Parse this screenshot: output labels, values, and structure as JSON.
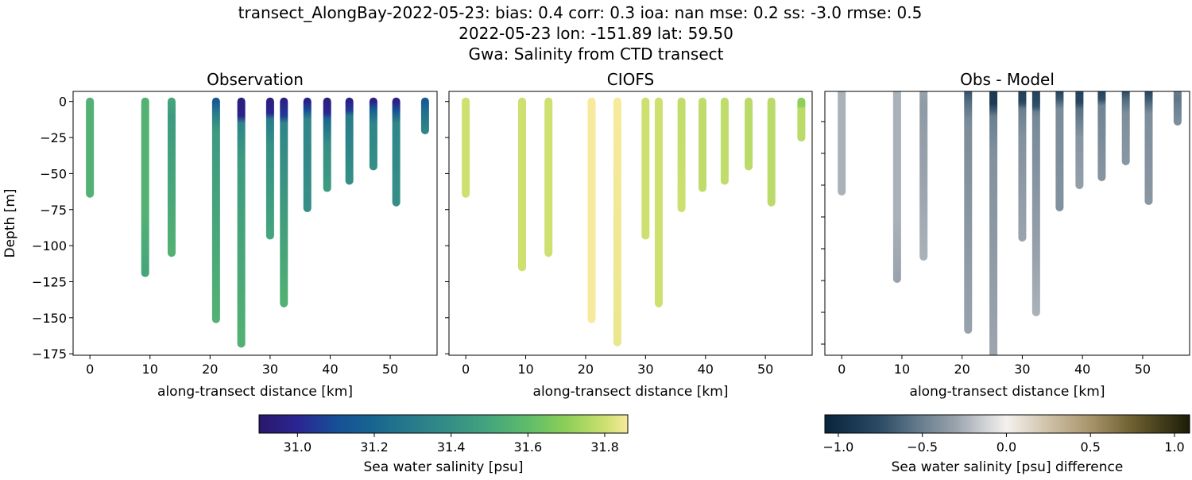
{
  "title_lines": [
    "transect_AlongBay-2022-05-23: bias: 0.4  corr: 0.3  ioa: nan  mse: 0.2  ss: -3.0  rmse: 0.5",
    "2022-05-23 lon: -151.89 lat: 59.50",
    "Gwa: Salinity from CTD transect"
  ],
  "chart_data": [
    {
      "type": "scatter",
      "title": "Observation",
      "xlabel": "along-transect distance [km]",
      "ylabel": "Depth [m]",
      "xlim": [
        -2.8,
        57.8
      ],
      "ylim": [
        -176,
        7
      ],
      "xticks": [
        0,
        10,
        20,
        30,
        40,
        50
      ],
      "yticks": [
        0,
        -25,
        -50,
        -75,
        -100,
        -125,
        -150,
        -175
      ],
      "colormap": "haline",
      "casts": [
        {
          "x": 0,
          "profile": [
            [
              0,
              31.55
            ],
            [
              64,
              31.55
            ]
          ]
        },
        {
          "x": 9.2,
          "profile": [
            [
              0,
              31.55
            ],
            [
              80,
              31.55
            ],
            [
              119,
              31.5
            ]
          ]
        },
        {
          "x": 13.6,
          "profile": [
            [
              0,
              31.5
            ],
            [
              10,
              31.45
            ],
            [
              105,
              31.55
            ]
          ]
        },
        {
          "x": 21,
          "profile": [
            [
              0,
              31.15
            ],
            [
              8,
              31.3
            ],
            [
              20,
              31.45
            ],
            [
              151,
              31.55
            ]
          ]
        },
        {
          "x": 25.2,
          "profile": [
            [
              0,
              30.95
            ],
            [
              10,
              30.98
            ],
            [
              15,
              31.35
            ],
            [
              40,
              31.45
            ],
            [
              168,
              31.55
            ]
          ]
        },
        {
          "x": 30,
          "profile": [
            [
              0,
              30.95
            ],
            [
              8,
              31.0
            ],
            [
              12,
              31.3
            ],
            [
              30,
              31.4
            ],
            [
              93,
              31.5
            ]
          ]
        },
        {
          "x": 32.3,
          "profile": [
            [
              0,
              30.97
            ],
            [
              10,
              31.05
            ],
            [
              15,
              31.35
            ],
            [
              140,
              31.55
            ]
          ]
        },
        {
          "x": 36.2,
          "profile": [
            [
              0,
              30.97
            ],
            [
              6,
              31.1
            ],
            [
              12,
              31.35
            ],
            [
              74,
              31.4
            ]
          ]
        },
        {
          "x": 39.5,
          "profile": [
            [
              0,
              30.95
            ],
            [
              8,
              31.0
            ],
            [
              12,
              31.2
            ],
            [
              30,
              31.4
            ],
            [
              60,
              31.45
            ]
          ]
        },
        {
          "x": 43.2,
          "profile": [
            [
              0,
              30.97
            ],
            [
              6,
              31.05
            ],
            [
              10,
              31.3
            ],
            [
              55,
              31.4
            ]
          ]
        },
        {
          "x": 47.2,
          "profile": [
            [
              0,
              30.97
            ],
            [
              5,
              31.15
            ],
            [
              15,
              31.35
            ],
            [
              45,
              31.4
            ]
          ]
        },
        {
          "x": 51,
          "profile": [
            [
              0,
              30.97
            ],
            [
              6,
              31.1
            ],
            [
              15,
              31.35
            ],
            [
              70,
              31.4
            ]
          ]
        },
        {
          "x": 55.8,
          "profile": [
            [
              0,
              31.15
            ],
            [
              8,
              31.25
            ],
            [
              20,
              31.35
            ]
          ]
        }
      ]
    },
    {
      "type": "scatter",
      "title": "CIOFS",
      "xlabel": "along-transect distance [km]",
      "xlim": [
        -2.8,
        57.8
      ],
      "ylim": [
        -176,
        7
      ],
      "xticks": [
        0,
        10,
        20,
        30,
        40,
        50
      ],
      "yticks": [
        0,
        -25,
        -50,
        -75,
        -100,
        -125,
        -150,
        -175
      ],
      "colormap": "haline",
      "casts": [
        {
          "x": 0,
          "profile": [
            [
              0,
              31.8
            ],
            [
              64,
              31.8
            ]
          ]
        },
        {
          "x": 9.4,
          "profile": [
            [
              0,
              31.8
            ],
            [
              115,
              31.8
            ]
          ]
        },
        {
          "x": 13.8,
          "profile": [
            [
              0,
              31.8
            ],
            [
              105,
              31.8
            ]
          ]
        },
        {
          "x": 21,
          "profile": [
            [
              0,
              31.88
            ],
            [
              151,
              31.86
            ]
          ]
        },
        {
          "x": 25.3,
          "profile": [
            [
              0,
              31.86
            ],
            [
              167,
              31.84
            ]
          ]
        },
        {
          "x": 30,
          "profile": [
            [
              0,
              31.8
            ],
            [
              93,
              31.8
            ]
          ]
        },
        {
          "x": 32.2,
          "profile": [
            [
              0,
              31.8
            ],
            [
              140,
              31.8
            ]
          ]
        },
        {
          "x": 36,
          "profile": [
            [
              0,
              31.78
            ],
            [
              74,
              31.8
            ]
          ]
        },
        {
          "x": 39.5,
          "profile": [
            [
              0,
              31.78
            ],
            [
              60,
              31.78
            ]
          ]
        },
        {
          "x": 43.2,
          "profile": [
            [
              0,
              31.78
            ],
            [
              55,
              31.78
            ]
          ]
        },
        {
          "x": 47.2,
          "profile": [
            [
              0,
              31.77
            ],
            [
              45,
              31.77
            ]
          ]
        },
        {
          "x": 51,
          "profile": [
            [
              0,
              31.77
            ],
            [
              70,
              31.77
            ]
          ]
        },
        {
          "x": 56,
          "profile": [
            [
              0,
              31.7
            ],
            [
              3,
              31.7
            ],
            [
              5,
              31.77
            ],
            [
              25,
              31.77
            ]
          ]
        }
      ]
    },
    {
      "type": "scatter",
      "title": "Obs - Model",
      "xlabel": "along-transect distance [km]",
      "xlim": [
        -2.8,
        57.8
      ],
      "ylim": [
        -167,
        -1
      ],
      "xticks": [
        0,
        10,
        20,
        30,
        40,
        50
      ],
      "yticks": [
        -20,
        -40,
        -60,
        -80,
        -100,
        -120,
        -140,
        -160
      ],
      "colormap": "diff",
      "casts": "obs - model"
    }
  ],
  "colorbars": [
    {
      "label": "Sea water salinity [psu]",
      "range": [
        30.9,
        31.86
      ],
      "ticks": [
        31.0,
        31.2,
        31.4,
        31.6,
        31.8
      ],
      "tick_labels": [
        "31.0",
        "31.2",
        "31.4",
        "31.6",
        "31.8"
      ]
    },
    {
      "label": "Sea water salinity [psu] difference",
      "range": [
        -1.08,
        1.09
      ],
      "ticks": [
        -1.0,
        -0.5,
        0,
        0.5,
        1.0
      ],
      "tick_labels": [
        "−1.0",
        "−0.5",
        "0.0",
        "0.5",
        "1.0"
      ]
    }
  ],
  "colormaps": {
    "haline": [
      [
        30.9,
        "#2a186c"
      ],
      [
        31.0,
        "#2b2592"
      ],
      [
        31.1,
        "#164f97"
      ],
      [
        31.2,
        "#18668f"
      ],
      [
        31.3,
        "#287b8b"
      ],
      [
        31.4,
        "#358f86"
      ],
      [
        31.5,
        "#45a57c"
      ],
      [
        31.6,
        "#5fbc6a"
      ],
      [
        31.7,
        "#8dcf58"
      ],
      [
        31.8,
        "#cde070"
      ],
      [
        31.86,
        "#f7ea9c"
      ]
    ],
    "diff": [
      [
        -1.08,
        "#08243b"
      ],
      [
        -0.75,
        "#2c4b65"
      ],
      [
        -0.5,
        "#6a8090"
      ],
      [
        -0.3,
        "#9aa3ad"
      ],
      [
        -0.15,
        "#c8ccd0"
      ],
      [
        0,
        "#f4f1ee"
      ],
      [
        0.25,
        "#cfc1a8"
      ],
      [
        0.5,
        "#a8946a"
      ],
      [
        0.75,
        "#6d5f30"
      ],
      [
        1.09,
        "#1c1c08"
      ]
    ]
  }
}
